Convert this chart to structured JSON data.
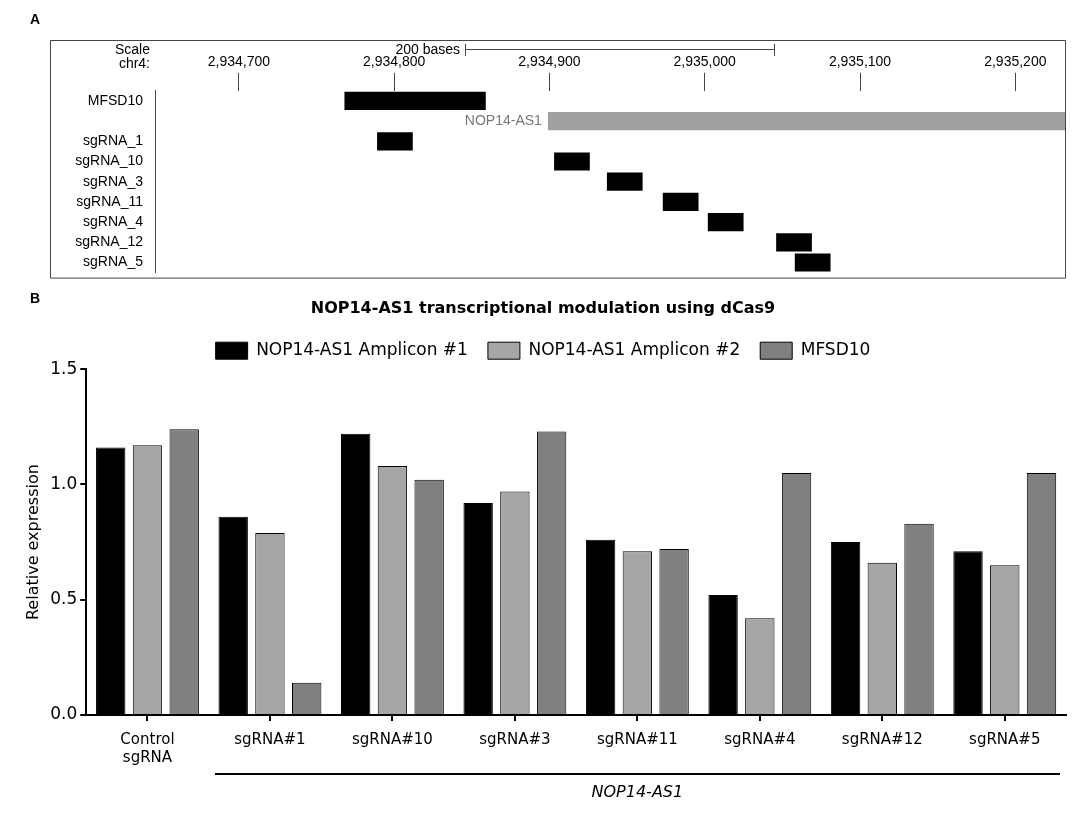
{
  "chart_data": [
    {
      "type": "bar",
      "orientation": "horizontal",
      "xlabel": "chr4:",
      "categories": [
        "MFSD10",
        null,
        "sgRNA_1",
        "sgRNA_10",
        "sgRNA_3",
        "sgRNA_11",
        "sgRNA_4",
        "sgRNA_12",
        "sgRNA_5"
      ],
      "base": [
        2934768,
        2934899,
        2934789,
        2934903,
        2934937,
        2934973,
        2935002,
        2935046,
        2935058
      ],
      "values": [
        91,
        333,
        23,
        23,
        23,
        23,
        23,
        23,
        23
      ],
      "colors": [
        "#000000",
        "#a0a0a0",
        "#000000",
        "#000000",
        "#000000",
        "#000000",
        "#000000",
        "#000000",
        "#000000"
      ],
      "xlim": [
        2934646,
        2935232
      ],
      "xticks": [
        {
          "value": 2934700,
          "label": "2,934,700"
        },
        {
          "value": 2934800,
          "label": "2,934,800"
        },
        {
          "value": 2934900,
          "label": "2,934,900"
        },
        {
          "value": 2935000,
          "label": "2,935,000"
        },
        {
          "value": 2935100,
          "label": "2,935,100"
        },
        {
          "value": 2935200,
          "label": "2,935,200"
        }
      ],
      "annotations": [
        "A",
        "Scale",
        "200 bases",
        "NOP14-AS1"
      ],
      "grid": false,
      "legend": false
    },
    {
      "type": "bar",
      "title": "NOP14-AS1 transcriptional modulation using dCas9",
      "ylabel": "Relative expression",
      "categories": [
        "Control\nsgRNA",
        "sgRNA#1",
        "sgRNA#10",
        "sgRNA#3",
        "sgRNA#11",
        "sgRNA#4",
        "sgRNA#12",
        "sgRNA#5"
      ],
      "series": [
        {
          "name": "NOP14-AS1 Amplicon #1",
          "color": "#000000",
          "values": [
            1.16,
            0.86,
            1.22,
            0.92,
            0.76,
            0.52,
            0.75,
            0.71
          ]
        },
        {
          "name": "NOP14-AS1 Amplicon #2",
          "color": "#a6a6a6",
          "values": [
            1.17,
            0.79,
            1.08,
            0.97,
            0.71,
            0.42,
            0.66,
            0.65
          ]
        },
        {
          "name": "MFSD10",
          "color": "#808080",
          "values": [
            1.24,
            0.14,
            1.02,
            1.23,
            0.72,
            1.05,
            0.83,
            1.05
          ]
        }
      ],
      "ylim": [
        0,
        1.5
      ],
      "yticks": [
        {
          "value": 0,
          "label": "0.0"
        },
        {
          "value": 0.5,
          "label": "0.5"
        },
        {
          "value": 1,
          "label": "1.0"
        },
        {
          "value": 1.5,
          "label": "1.5"
        }
      ],
      "annotations": [
        "B",
        "NOP14-AS1"
      ],
      "grid": false,
      "legend": "top"
    }
  ]
}
